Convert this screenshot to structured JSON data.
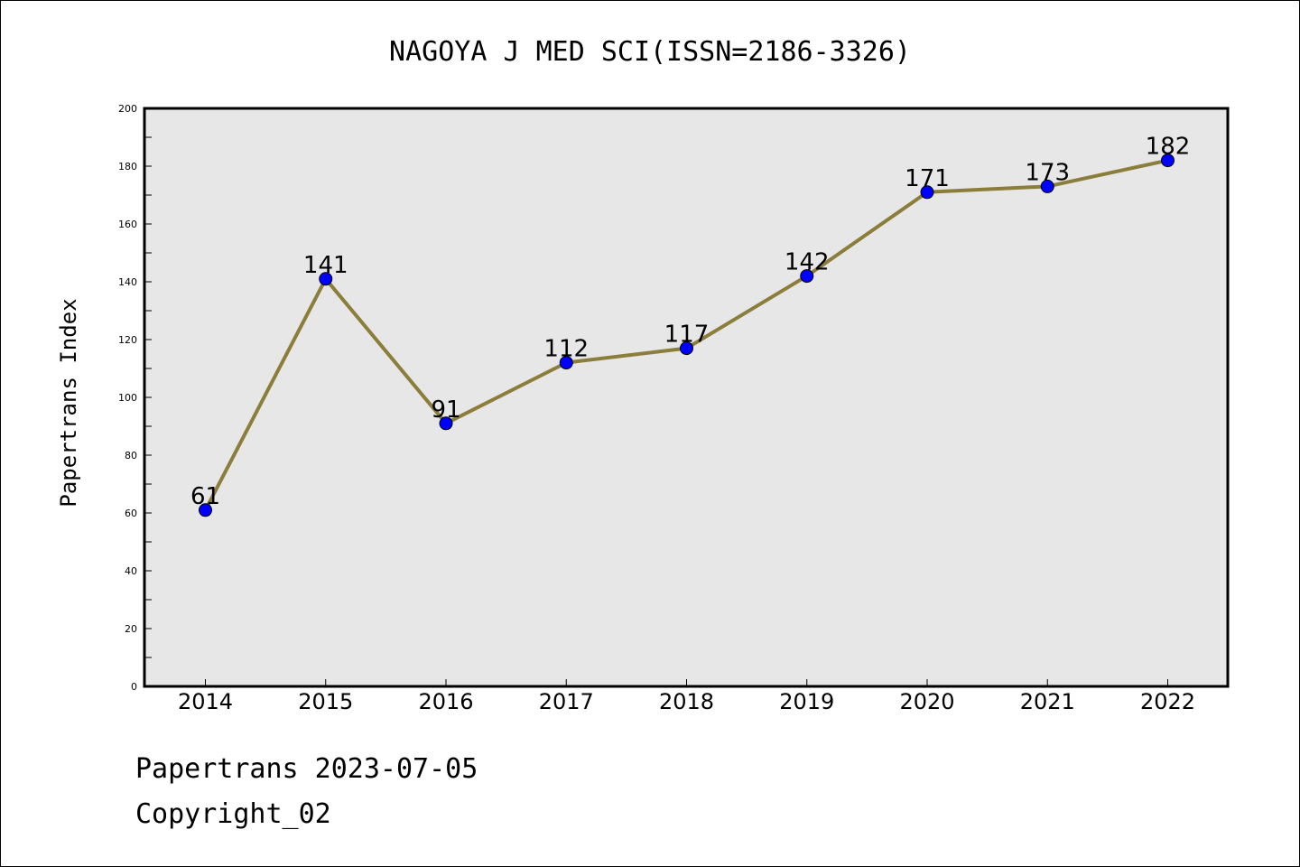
{
  "chart_data": {
    "type": "line",
    "title": "NAGOYA J MED SCI(ISSN=2186-3326)",
    "xlabel": "",
    "ylabel": "Papertrans Index",
    "categories": [
      "2014",
      "2015",
      "2016",
      "2017",
      "2018",
      "2019",
      "2020",
      "2021",
      "2022"
    ],
    "series": [
      {
        "values": [
          61,
          141,
          91,
          112,
          117,
          142,
          171,
          173,
          182
        ],
        "line_color": "#8b7d3a",
        "marker_color": "#0000ff"
      }
    ],
    "data_labels": [
      "61",
      "141",
      "91",
      "112",
      "117",
      "142",
      "171",
      "173",
      "182"
    ],
    "ylim": [
      0,
      200
    ],
    "yticks": [
      0,
      20,
      40,
      60,
      80,
      100,
      120,
      140,
      160,
      180,
      200
    ],
    "ytick_labels": [
      "0",
      "20",
      "40",
      "60",
      "80",
      "100",
      "120",
      "140",
      "160",
      "180",
      "200"
    ],
    "plot_background": "#e7e7e7",
    "grid": false,
    "legend": "none"
  },
  "footer": {
    "line1": "Papertrans 2023-07-05",
    "line2": "Copyright_02"
  }
}
